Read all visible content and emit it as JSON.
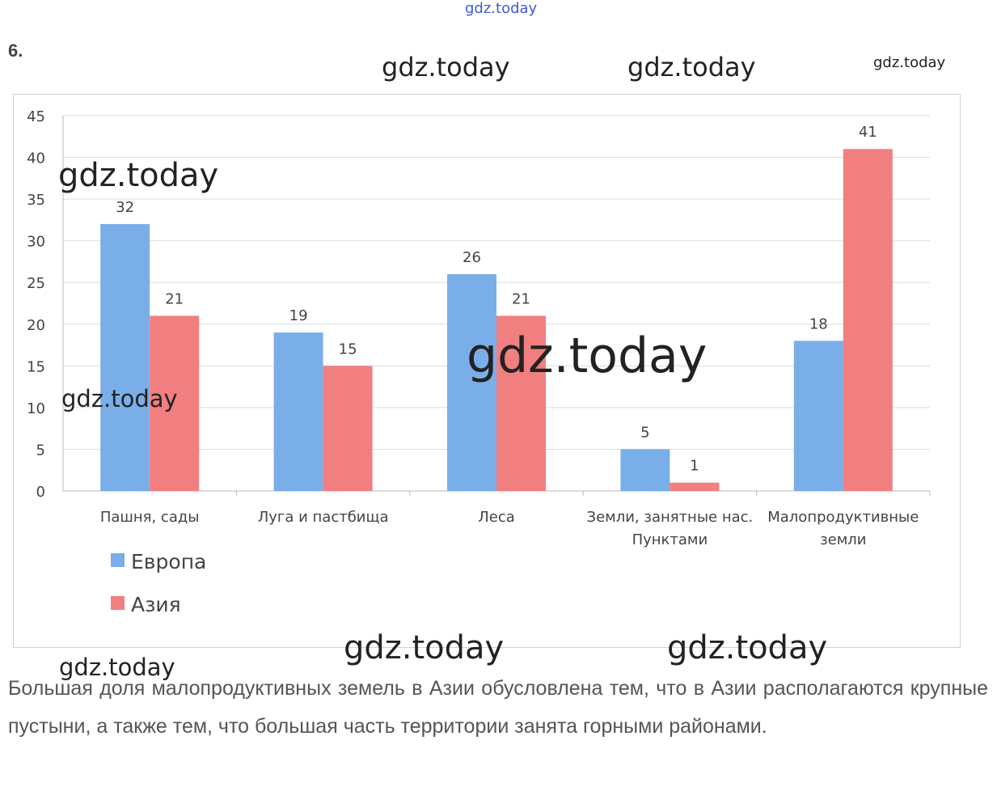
{
  "task_number": "6.",
  "watermarks": [
    "gdz.today",
    "gdz.today",
    "gdz.today",
    "gdz.today",
    "gdz.today",
    "gdz.today",
    "gdz.today",
    "gdz.today",
    "gdz.today",
    "gdz.today"
  ],
  "chart_data": {
    "type": "bar",
    "title": "",
    "xlabel": "",
    "ylabel": "",
    "ylim": [
      0,
      45
    ],
    "yticks": [
      0,
      5,
      10,
      15,
      20,
      25,
      30,
      35,
      40,
      45
    ],
    "grid": true,
    "legend_position": "bottom-left",
    "categories": [
      [
        "Пашня, сады"
      ],
      [
        "Луга и пастбища"
      ],
      [
        "Леса"
      ],
      [
        "Земли, занятные нас.",
        "Пунктами"
      ],
      [
        "Малопродуктивные",
        "земли"
      ]
    ],
    "series": [
      {
        "name": "Европа",
        "color": "#7aaee8",
        "values": [
          32,
          19,
          26,
          5,
          18
        ]
      },
      {
        "name": "Азия",
        "color": "#f27f7f",
        "values": [
          21,
          15,
          21,
          1,
          41
        ]
      }
    ]
  },
  "answer_text": "Большая доля малопродуктивных земель в Азии обусловлена тем, что в Азии располагаются крупные пустыни, а также тем, что большая часть территории занята горными районами."
}
